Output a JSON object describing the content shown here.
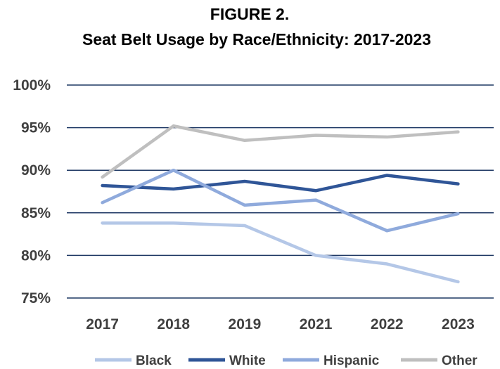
{
  "chart_data": {
    "type": "line",
    "title_line1": "FIGURE 2.",
    "title_line2": "Seat Belt Usage by Race/Ethnicity: 2017-2023",
    "categories": [
      "2017",
      "2018",
      "2019",
      "2021",
      "2022",
      "2023"
    ],
    "ylim": [
      75,
      100
    ],
    "yticks": [
      {
        "value": 100,
        "label": "100%"
      },
      {
        "value": 95,
        "label": "95%"
      },
      {
        "value": 90,
        "label": "90%"
      },
      {
        "value": 85,
        "label": "85%"
      },
      {
        "value": 80,
        "label": "80%"
      },
      {
        "value": 75,
        "label": "75%"
      }
    ],
    "grid": true,
    "legend_position": "bottom",
    "series": [
      {
        "name": "Black",
        "color": "#b4c7e7",
        "values": [
          83.8,
          83.8,
          83.5,
          80.0,
          79.0,
          76.9
        ]
      },
      {
        "name": "White",
        "color": "#2f5597",
        "values": [
          88.2,
          87.8,
          88.7,
          87.6,
          89.4,
          88.4
        ]
      },
      {
        "name": "Hispanic",
        "color": "#8faadc",
        "values": [
          86.2,
          90.0,
          85.9,
          86.5,
          82.9,
          84.9
        ]
      },
      {
        "name": "Other",
        "color": "#bfbfbf",
        "values": [
          89.2,
          95.2,
          93.5,
          94.1,
          93.9,
          94.5
        ]
      }
    ],
    "gridline_color": "#1f3864"
  }
}
